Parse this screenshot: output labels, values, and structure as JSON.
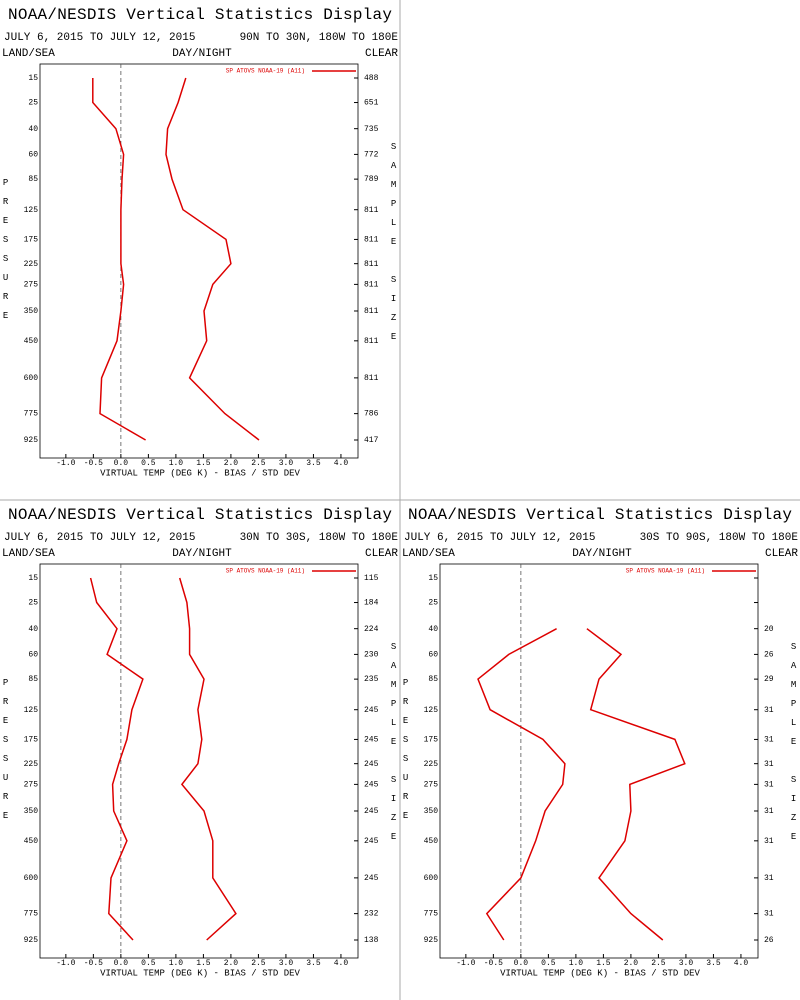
{
  "chart_data": [
    {
      "type": "line",
      "title": "NOAA/NESDIS Vertical Statistics Display",
      "subtitle": "JULY 6, 2015 TO JULY 12, 2015",
      "region": "90N TO 30N, 180W TO 180E",
      "land_sea_label": "LAND/SEA",
      "day_night_label": "DAY/NIGHT",
      "clear_label": "CLEAR",
      "y_label": "PRESSURE",
      "y2_label": "SAMPLE SIZE",
      "x_label": "VIRTUAL TEMP (DEG K) - BIAS / STD DEV",
      "y": [
        15,
        25,
        40,
        60,
        85,
        125,
        175,
        225,
        275,
        350,
        450,
        600,
        775,
        925
      ],
      "sample_sizes": [
        488,
        651,
        735,
        772,
        789,
        811,
        811,
        811,
        811,
        811,
        811,
        811,
        786,
        417
      ],
      "series": [
        {
          "name": "SP ATOVS NOAA-19 (A11)",
          "color": "#dd0000",
          "values": [
            -0.51,
            -0.51,
            -0.09,
            0.05,
            0.02,
            0,
            0,
            0,
            0.05,
            0,
            -0.07,
            -0.35,
            -0.38,
            0.45
          ],
          "std_dev": [
            1.18,
            1.04,
            0.85,
            0.82,
            0.93,
            1.13,
            1.91,
            2.0,
            1.67,
            1.51,
            1.56,
            1.25,
            1.89,
            2.51
          ]
        }
      ],
      "xlim": [
        -1.47,
        4.31
      ],
      "xticks": [
        {
          "value": -1,
          "label": "-1.0"
        },
        {
          "value": -0.5,
          "label": "-0.5"
        },
        {
          "value": 0,
          "label": "0.0"
        },
        {
          "value": 0.5,
          "label": "0.5"
        },
        {
          "value": 1,
          "label": "1.0"
        },
        {
          "value": 1.5,
          "label": "1.5"
        },
        {
          "value": 2,
          "label": "2.0"
        },
        {
          "value": 2.5,
          "label": "2.5"
        },
        {
          "value": 3,
          "label": "3.0"
        },
        {
          "value": 3.5,
          "label": "3.5"
        },
        {
          "value": 4,
          "label": "4.0"
        }
      ]
    },
    {
      "type": "line",
      "title": "NOAA/NESDIS Vertical Statistics Display",
      "subtitle": "JULY 6, 2015 TO JULY 12, 2015",
      "region": "30N TO 30S, 180W TO 180E",
      "land_sea_label": "LAND/SEA",
      "day_night_label": "DAY/NIGHT",
      "clear_label": "CLEAR",
      "y_label": "PRESSURE",
      "y2_label": "SAMPLE SIZE",
      "x_label": "VIRTUAL TEMP (DEG K) - BIAS / STD DEV",
      "y": [
        15,
        25,
        40,
        60,
        85,
        125,
        175,
        225,
        275,
        350,
        450,
        600,
        775,
        925
      ],
      "sample_sizes": [
        115,
        184,
        224,
        230,
        235,
        245,
        245,
        245,
        245,
        245,
        245,
        245,
        232,
        138
      ],
      "series": [
        {
          "name": "SP ATOVS NOAA-19 (A11)",
          "color": "#dd0000",
          "values": [
            -0.55,
            -0.44,
            -0.07,
            -0.25,
            0.4,
            0.2,
            0.11,
            -0.04,
            -0.15,
            -0.13,
            0.11,
            -0.18,
            -0.22,
            0.22
          ],
          "std_dev": [
            1.07,
            1.2,
            1.25,
            1.25,
            1.51,
            1.4,
            1.47,
            1.4,
            1.11,
            1.51,
            1.67,
            1.67,
            2.09,
            1.56
          ]
        }
      ],
      "xlim": [
        -1.47,
        4.31
      ],
      "xticks": [
        {
          "value": -1,
          "label": "-1.0"
        },
        {
          "value": -0.5,
          "label": "-0.5"
        },
        {
          "value": 0,
          "label": "0.0"
        },
        {
          "value": 0.5,
          "label": "0.5"
        },
        {
          "value": 1,
          "label": "1.0"
        },
        {
          "value": 1.5,
          "label": "1.5"
        },
        {
          "value": 2,
          "label": "2.0"
        },
        {
          "value": 2.5,
          "label": "2.5"
        },
        {
          "value": 3,
          "label": "3.0"
        },
        {
          "value": 3.5,
          "label": "3.5"
        },
        {
          "value": 4,
          "label": "4.0"
        }
      ]
    },
    {
      "type": "line",
      "title": "NOAA/NESDIS Vertical Statistics Display",
      "subtitle": "JULY 6, 2015 TO JULY 12, 2015",
      "region": "30S TO 90S, 180W TO 180E",
      "land_sea_label": "LAND/SEA",
      "day_night_label": "DAY/NIGHT",
      "clear_label": "CLEAR",
      "y_label": "PRESSURE",
      "y2_label": "SAMPLE SIZE",
      "x_label": "VIRTUAL TEMP (DEG K) - BIAS / STD DEV",
      "y": [
        15,
        25,
        40,
        60,
        85,
        125,
        175,
        225,
        275,
        350,
        450,
        600,
        775,
        925
      ],
      "sample_sizes": [
        null,
        null,
        20,
        26,
        29,
        31,
        31,
        31,
        31,
        31,
        31,
        31,
        31,
        26
      ],
      "series": [
        {
          "name": "SP ATOVS NOAA-19 (A11)",
          "color": "#dd0000",
          "values": [
            null,
            null,
            0.65,
            -0.22,
            -0.78,
            -0.56,
            0.4,
            0.8,
            0.76,
            0.44,
            0.27,
            0,
            -0.62,
            -0.31
          ],
          "std_dev": [
            null,
            null,
            1.2,
            1.82,
            1.42,
            1.27,
            2.8,
            2.98,
            1.98,
            2.0,
            1.89,
            1.42,
            2.0,
            2.58
          ]
        }
      ],
      "xlim": [
        -1.47,
        4.31
      ],
      "xticks": [
        {
          "value": -1,
          "label": "-1.0"
        },
        {
          "value": -0.5,
          "label": "-0.5"
        },
        {
          "value": 0,
          "label": "0.0"
        },
        {
          "value": 0.5,
          "label": "0.5"
        },
        {
          "value": 1,
          "label": "1.0"
        },
        {
          "value": 1.5,
          "label": "1.5"
        },
        {
          "value": 2,
          "label": "2.0"
        },
        {
          "value": 2.5,
          "label": "2.5"
        },
        {
          "value": 3,
          "label": "3.0"
        },
        {
          "value": 3.5,
          "label": "3.5"
        },
        {
          "value": 4,
          "label": "4.0"
        }
      ]
    }
  ]
}
